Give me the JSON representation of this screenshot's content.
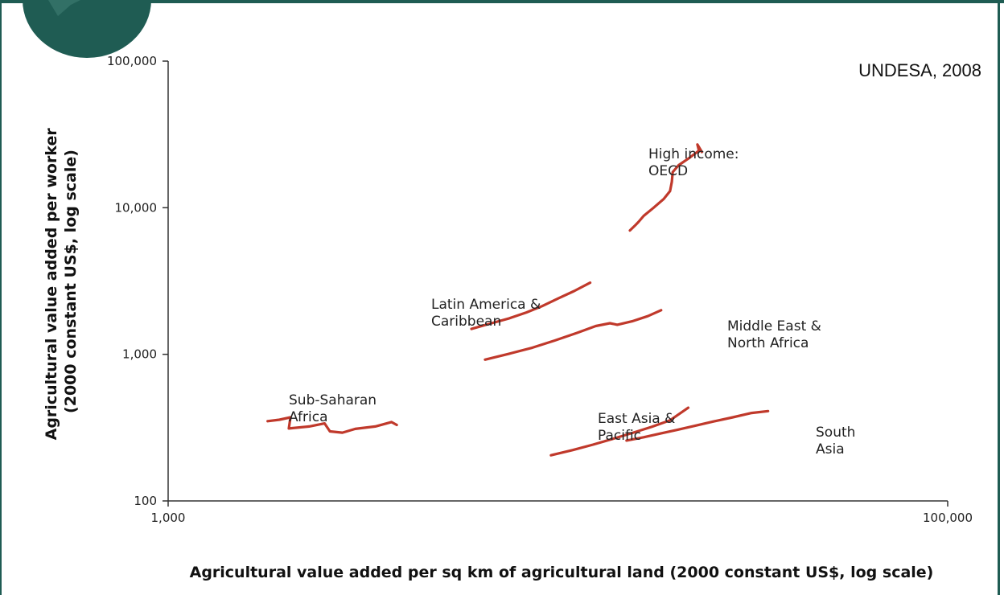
{
  "source_note": "UNDESA, 2008",
  "colors": {
    "series": "#c0392b",
    "frame": "#1f5c53",
    "badge": "#1f5c53"
  },
  "chart_data": {
    "type": "line",
    "xlabel": "Agricultural value added per sq km of agricultural land (2000 constant US$, log scale)",
    "ylabel_line1": "Agricultural value added per worker",
    "ylabel_line2": "(2000 constant US$, log scale)",
    "x_scale": "log",
    "y_scale": "log",
    "xlim": [
      1000,
      100000
    ],
    "ylim": [
      100,
      100000
    ],
    "x_ticks": [
      {
        "value": 1000,
        "label": "1,000"
      },
      {
        "value": 100000,
        "label": "100,000"
      }
    ],
    "y_ticks": [
      {
        "value": 100,
        "label": "100"
      },
      {
        "value": 1000,
        "label": "1,000"
      },
      {
        "value": 10000,
        "label": "10,000"
      },
      {
        "value": 100000,
        "label": "100,000"
      }
    ],
    "grid": false,
    "series": [
      {
        "name_lines": [
          "High income:",
          "OECD"
        ],
        "points": [
          [
            15300,
            7000
          ],
          [
            15800,
            7600
          ],
          [
            16100,
            8000
          ],
          [
            16600,
            8800
          ],
          [
            17600,
            10000
          ],
          [
            18700,
            11500
          ],
          [
            19400,
            13000
          ],
          [
            19600,
            15000
          ],
          [
            19700,
            17500
          ],
          [
            20400,
            19500
          ],
          [
            21800,
            22000
          ],
          [
            23000,
            24500
          ],
          [
            22800,
            27000
          ],
          [
            23400,
            24000
          ]
        ]
      },
      {
        "name_lines": [
          "Latin America &",
          "Caribbean"
        ],
        "points": [
          [
            6000,
            1490
          ],
          [
            6700,
            1620
          ],
          [
            7500,
            1760
          ],
          [
            8300,
            1930
          ],
          [
            9100,
            2130
          ],
          [
            10000,
            2400
          ],
          [
            11000,
            2700
          ],
          [
            12100,
            3080
          ]
        ]
      },
      {
        "name_lines": [
          "Middle East &",
          "North Africa"
        ],
        "points": [
          [
            6500,
            920
          ],
          [
            7500,
            1010
          ],
          [
            8600,
            1110
          ],
          [
            9800,
            1240
          ],
          [
            11200,
            1400
          ],
          [
            12500,
            1560
          ],
          [
            13600,
            1630
          ],
          [
            14200,
            1590
          ],
          [
            15500,
            1680
          ],
          [
            17000,
            1820
          ],
          [
            18400,
            2000
          ]
        ]
      },
      {
        "name_lines": [
          "Sub-Saharan",
          "Africa"
        ],
        "points": [
          [
            1800,
            350
          ],
          [
            1930,
            358
          ],
          [
            2060,
            372
          ],
          [
            2040,
            312
          ],
          [
            2300,
            322
          ],
          [
            2520,
            338
          ],
          [
            2600,
            298
          ],
          [
            2800,
            292
          ],
          [
            3020,
            310
          ],
          [
            3400,
            322
          ],
          [
            3740,
            345
          ],
          [
            3860,
            330
          ]
        ]
      },
      {
        "name_lines": [
          "East Asia &",
          "Pacific"
        ],
        "points": [
          [
            9600,
            205
          ],
          [
            10900,
            222
          ],
          [
            12300,
            242
          ],
          [
            13900,
            266
          ],
          [
            15600,
            292
          ],
          [
            17400,
            320
          ],
          [
            19400,
            355
          ],
          [
            21600,
            432
          ]
        ]
      },
      {
        "name_lines": [
          "South",
          "Asia"
        ],
        "points": [
          [
            15000,
            258
          ],
          [
            16600,
            272
          ],
          [
            18300,
            288
          ],
          [
            20200,
            305
          ],
          [
            22400,
            325
          ],
          [
            25000,
            348
          ],
          [
            28100,
            372
          ],
          [
            31400,
            398
          ],
          [
            34600,
            410
          ]
        ]
      }
    ]
  }
}
